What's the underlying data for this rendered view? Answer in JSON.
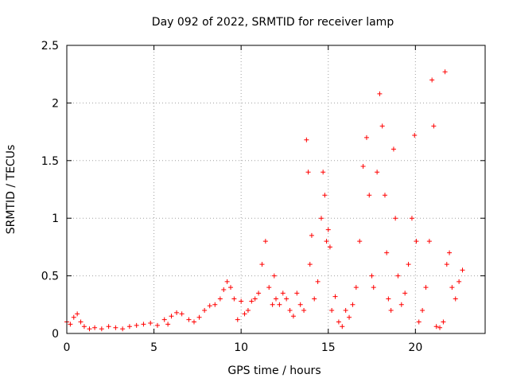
{
  "chart_data": {
    "type": "scatter",
    "title": "Day 092 of 2022, SRMTID for receiver lamp",
    "xlabel": "GPS time / hours",
    "ylabel": "SRMTID / TECUs",
    "xlim": [
      0,
      24
    ],
    "ylim": [
      0,
      2.5
    ],
    "x_ticks": [
      0,
      5,
      10,
      15,
      20
    ],
    "x_tick_labels": [
      "0",
      "5",
      "10",
      "15",
      "20"
    ],
    "y_ticks": [
      0,
      0.5,
      1,
      1.5,
      2,
      2.5
    ],
    "y_tick_labels": [
      "0",
      "0.5",
      "1",
      "1.5",
      "2",
      "2.5"
    ],
    "grid": true,
    "marker": "+",
    "color": "#ff0000",
    "series": [
      {
        "name": "SRMTID",
        "x": [
          0.0,
          0.2,
          0.4,
          0.6,
          0.8,
          1.0,
          1.3,
          1.6,
          2.0,
          2.4,
          2.8,
          3.2,
          3.6,
          4.0,
          4.4,
          4.8,
          5.2,
          5.6,
          5.8,
          6.0,
          6.3,
          6.6,
          7.0,
          7.3,
          7.6,
          7.9,
          8.2,
          8.5,
          8.8,
          9.0,
          9.2,
          9.4,
          9.6,
          9.8,
          10.0,
          10.2,
          10.4,
          10.6,
          10.8,
          11.0,
          11.2,
          11.4,
          11.6,
          11.8,
          11.9,
          12.0,
          12.2,
          12.4,
          12.6,
          12.8,
          13.0,
          13.2,
          13.4,
          13.6,
          13.75,
          13.85,
          13.95,
          14.05,
          14.2,
          14.4,
          14.6,
          14.7,
          14.8,
          14.9,
          15.0,
          15.1,
          15.2,
          15.4,
          15.6,
          15.8,
          16.0,
          16.2,
          16.4,
          16.6,
          16.8,
          17.0,
          17.2,
          17.35,
          17.5,
          17.6,
          17.8,
          17.95,
          18.1,
          18.25,
          18.35,
          18.45,
          18.6,
          18.75,
          18.85,
          19.0,
          19.2,
          19.4,
          19.6,
          19.8,
          19.95,
          20.05,
          20.2,
          20.4,
          20.6,
          20.8,
          20.95,
          21.05,
          21.2,
          21.4,
          21.6,
          21.7,
          21.8,
          21.95,
          22.1,
          22.3,
          22.5,
          22.7
        ],
        "y": [
          0.1,
          0.08,
          0.14,
          0.17,
          0.1,
          0.06,
          0.04,
          0.05,
          0.04,
          0.06,
          0.05,
          0.04,
          0.06,
          0.07,
          0.08,
          0.09,
          0.07,
          0.12,
          0.08,
          0.15,
          0.18,
          0.17,
          0.12,
          0.1,
          0.14,
          0.2,
          0.24,
          0.25,
          0.3,
          0.38,
          0.45,
          0.4,
          0.3,
          0.12,
          0.28,
          0.17,
          0.2,
          0.28,
          0.3,
          0.35,
          0.6,
          0.8,
          0.4,
          0.25,
          0.5,
          0.3,
          0.25,
          0.35,
          0.3,
          0.2,
          0.15,
          0.35,
          0.25,
          0.2,
          1.68,
          1.4,
          0.6,
          0.85,
          0.3,
          0.45,
          1.0,
          1.4,
          1.2,
          0.8,
          0.9,
          0.75,
          0.2,
          0.32,
          0.1,
          0.06,
          0.2,
          0.14,
          0.25,
          0.4,
          0.8,
          1.45,
          1.7,
          1.2,
          0.5,
          0.4,
          1.4,
          2.08,
          1.8,
          1.2,
          0.7,
          0.3,
          0.2,
          1.6,
          1.0,
          0.5,
          0.25,
          0.35,
          0.6,
          1.0,
          1.72,
          0.8,
          0.1,
          0.2,
          0.4,
          0.8,
          2.2,
          1.8,
          0.06,
          0.05,
          0.1,
          2.27,
          0.6,
          0.7,
          0.4,
          0.3,
          0.45,
          0.55
        ]
      }
    ]
  }
}
